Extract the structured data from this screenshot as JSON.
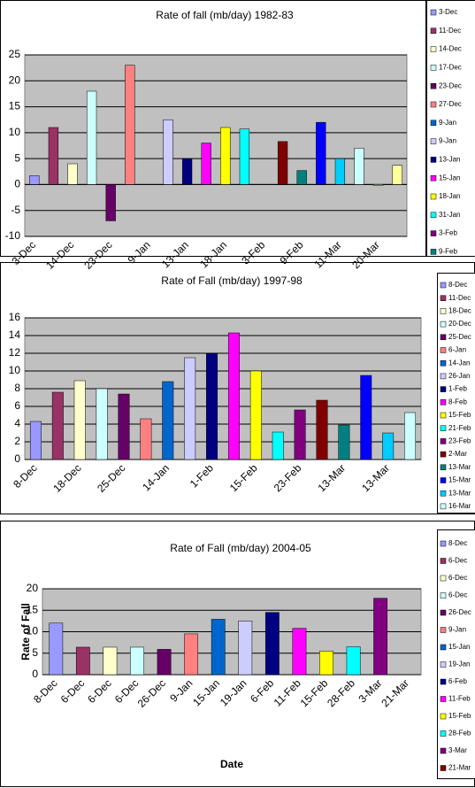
{
  "chart_data": [
    {
      "type": "bar",
      "title": "Rate of fall (mb/day) 1982-83",
      "categories": [
        "3-Dec",
        "11-Dec",
        "14-Dec",
        "17-Dec",
        "23-Dec",
        "27-Dec",
        "9-Jan",
        "9-Jan",
        "13-Jan",
        "15-Jan",
        "18-Jan",
        "31-Jan",
        "3-Feb",
        null,
        "9-Feb",
        null,
        "11-Mar",
        null,
        "20-Mar",
        null
      ],
      "values": [
        1.7,
        11,
        4,
        18,
        -7,
        23,
        0,
        12.5,
        5,
        8,
        11,
        10.7,
        0,
        8.3,
        2.7,
        12,
        5,
        7,
        -0.2,
        3.7
      ],
      "colors": [
        "#9999FF",
        "#993366",
        "#FFFFCC",
        "#CCFFFF",
        "#660066",
        "#FF8080",
        "#0066CC",
        "#CCCCFF",
        "#000080",
        "#FF00FF",
        "#FFFF00",
        "#00FFFF",
        "#800080",
        "#800000",
        "#008080",
        "#0000FF",
        "#00CCFF",
        "#CCFFFF",
        "#CCFFCC",
        "#FFFF99"
      ],
      "ylim": [
        -10,
        25
      ],
      "yticks": [
        -10,
        -5,
        0,
        5,
        10,
        15,
        20,
        25
      ],
      "grid": true,
      "x_label_step": 2,
      "legend": "right"
    },
    {
      "type": "bar",
      "title": "Rate of Fall (mb/day) 1997-98",
      "categories": [
        "8-Dec",
        "11-Dec",
        "18-Dec",
        "20-Dec",
        "25-Dec",
        "6-Jan",
        "14-Jan",
        "26-Jan",
        "1-Feb",
        "8-Feb",
        "15-Feb",
        "21-Feb",
        "23-Feb",
        "2-Mar",
        "13-Mar",
        "15-Mar",
        "13-Mar",
        "16-Mar"
      ],
      "values": [
        4.3,
        7.6,
        8.9,
        8.0,
        7.4,
        4.6,
        8.8,
        11.5,
        12,
        14.3,
        10,
        3.1,
        5.6,
        6.7,
        3.9,
        9.5,
        3.0,
        5.3
      ],
      "colors": [
        "#9999FF",
        "#993366",
        "#FFFFCC",
        "#CCFFFF",
        "#660066",
        "#FF8080",
        "#0066CC",
        "#CCCCFF",
        "#000080",
        "#FF00FF",
        "#FFFF00",
        "#00FFFF",
        "#800080",
        "#800000",
        "#008080",
        "#0000FF",
        "#00CCFF",
        "#CCFFFF"
      ],
      "ylim": [
        0,
        16
      ],
      "yticks": [
        0,
        2,
        4,
        6,
        8,
        10,
        12,
        14,
        16
      ],
      "grid": true,
      "x_label_step": 2,
      "legend": "right"
    },
    {
      "type": "bar",
      "title": "Rate of Fall (mb/day) 2004-05",
      "x_label": "Date",
      "y_label": "Rate of Fall",
      "categories": [
        "8-Dec",
        "6-Dec",
        "6-Dec",
        "6-Dec",
        "26-Dec",
        "9-Jan",
        "15-Jan",
        "19-Jan",
        "6-Feb",
        "11-Feb",
        "15-Feb",
        "28-Feb",
        "3-Mar",
        "21-Mar"
      ],
      "values": [
        12,
        6.4,
        6.4,
        6.4,
        5.9,
        9.5,
        12.9,
        12.5,
        14.5,
        10.8,
        5.5,
        6.5,
        17.8,
        0
      ],
      "colors": [
        "#9999FF",
        "#993366",
        "#FFFFCC",
        "#CCFFFF",
        "#660066",
        "#FF8080",
        "#0066CC",
        "#CCCCFF",
        "#000080",
        "#FF00FF",
        "#FFFF00",
        "#00FFFF",
        "#800080",
        "#800000"
      ],
      "ylim": [
        0,
        20
      ],
      "yticks": [
        0,
        5,
        10,
        15,
        20
      ],
      "grid": true,
      "x_label_step": 1,
      "legend": "right"
    }
  ]
}
